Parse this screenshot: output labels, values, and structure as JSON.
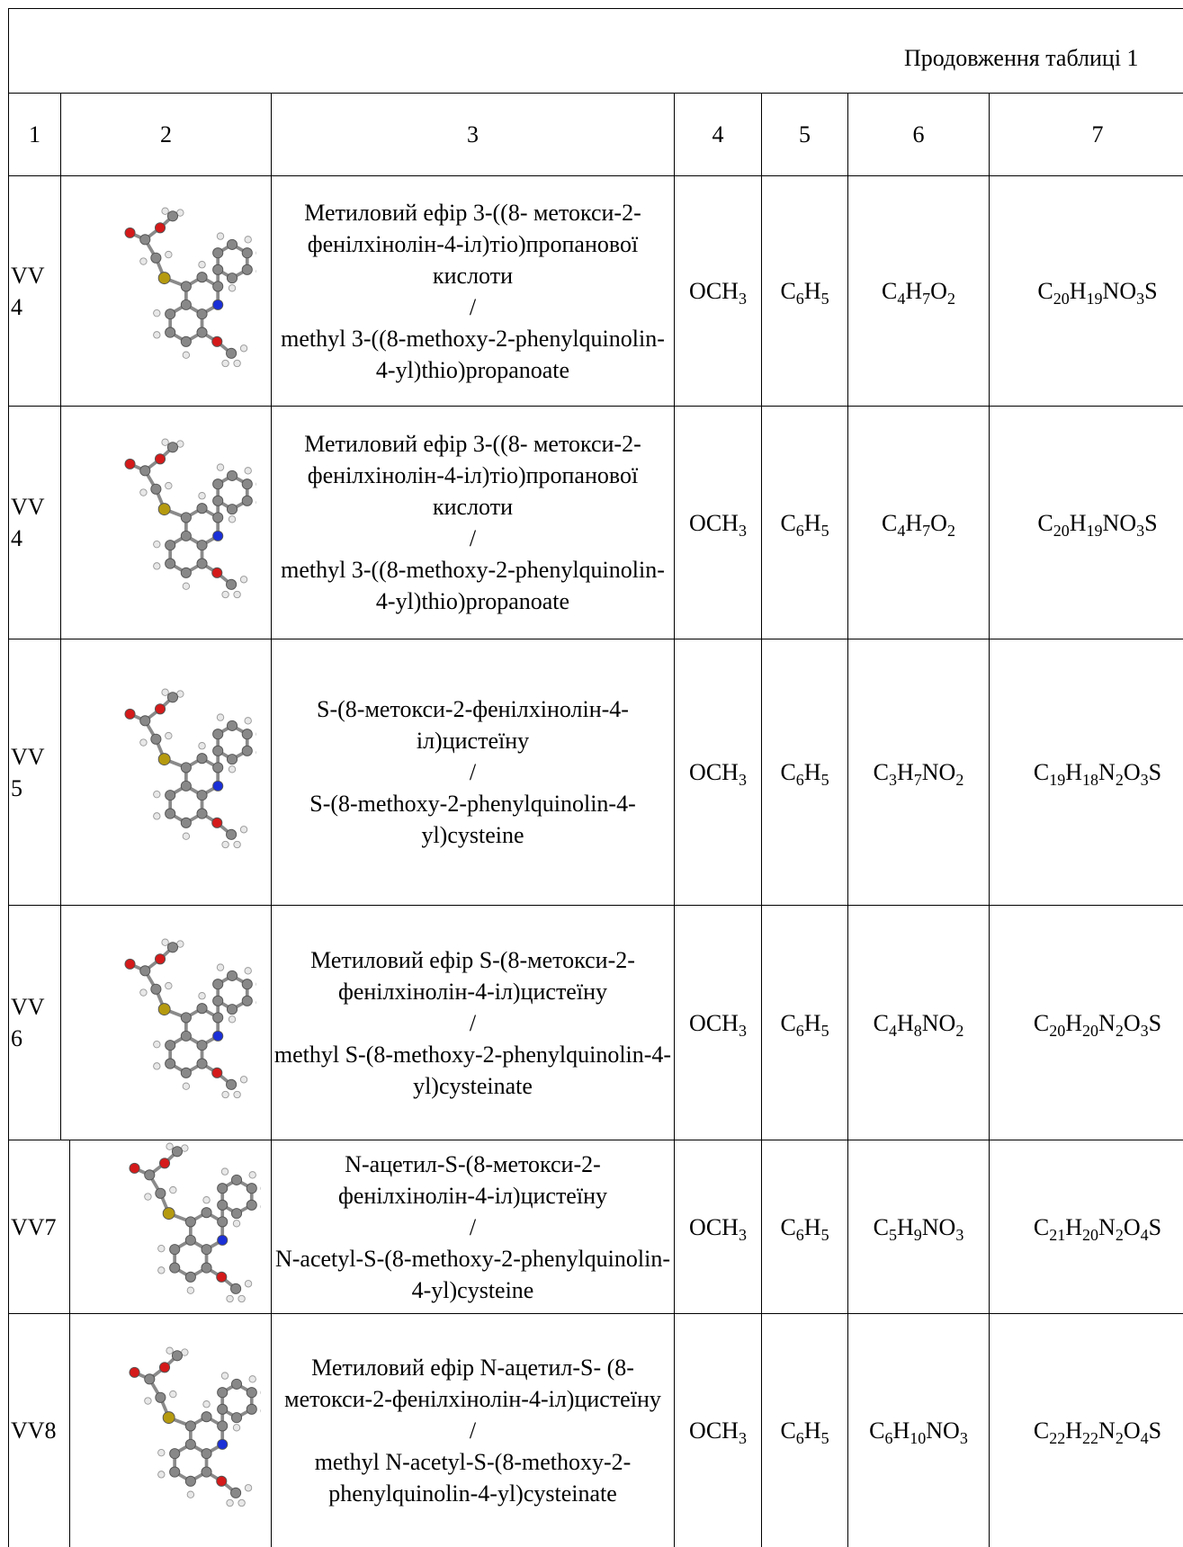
{
  "header": {
    "continuation": "Продовження таблиці 1"
  },
  "table": {
    "columns": [
      "1",
      "2",
      "3",
      "4",
      "5",
      "6",
      "7"
    ],
    "rows": [
      {
        "code": "VV4",
        "name_uk": "Метиловий ефір 3-((8- метокси-2-фенілхінолін-4-іл)тіо)пропанової кислоти",
        "separator": "/",
        "name_en": "methyl 3-((8-methoxy-2-phenylquinolin-4-yl)thio)propanoate",
        "r1": "OCH3",
        "r2": "C6H5",
        "r3": "C4H7O2",
        "formula": "C20H19NO3S"
      },
      {
        "code": "VV4",
        "name_uk": "Метиловий ефір 3-((8- метокси-2-фенілхінолін-4-іл)тіо)пропанової кислоти",
        "separator": "/",
        "name_en": "methyl 3-((8-methoxy-2-phenylquinolin-4-yl)thio)propanoate",
        "r1": "OCH3",
        "r2": "C6H5",
        "r3": "C4H7O2",
        "formula": "C20H19NO3S"
      },
      {
        "code": "VV5",
        "name_uk": "S-(8-метокси-2-фенілхінолін-4-іл)цистеїну",
        "separator": "/",
        "name_en": "S-(8-methoxy-2-phenylquinolin-4-yl)cysteine",
        "r1": "OCH3",
        "r2": "C6H5",
        "r3": "C3H7NO2",
        "formula": "C19H18N2O3S"
      },
      {
        "code": "VV6",
        "name_uk": "Метиловий ефір S-(8-метокси-2-фенілхінолін-4-іл)цистеїну",
        "separator": "/",
        "name_en": "methyl S-(8-methoxy-2-phenylquinolin-4-yl)cysteinate",
        "r1": "OCH3",
        "r2": "C6H5",
        "r3": "C4H8NO2",
        "formula": "C20H20N2O3S"
      },
      {
        "code": "VV7",
        "name_uk": "N-ацетил-S-(8-метокси-2-фенілхінолін-4-іл)цистеїну",
        "separator": "/",
        "name_en": "N-acetyl-S-(8-methoxy-2-phenylquinolin-4-yl)cysteine",
        "r1": "OCH3",
        "r2": "C6H5",
        "r3": "C5H9NO3",
        "formula": "C21H20N2O4S"
      },
      {
        "code": "VV8",
        "name_uk": "Метиловий ефір N-ацетил-S- (8-метокси-2-фенілхінолін-4-іл)цистеїну",
        "separator": "/",
        "name_en": "methyl N-acetyl-S-(8-methoxy-2-phenylquinolin-4-yl)cysteinate",
        "r1": "OCH3",
        "r2": "C6H5",
        "r3": "C6H10NO3",
        "formula": "C22H22N2O4S"
      }
    ]
  }
}
